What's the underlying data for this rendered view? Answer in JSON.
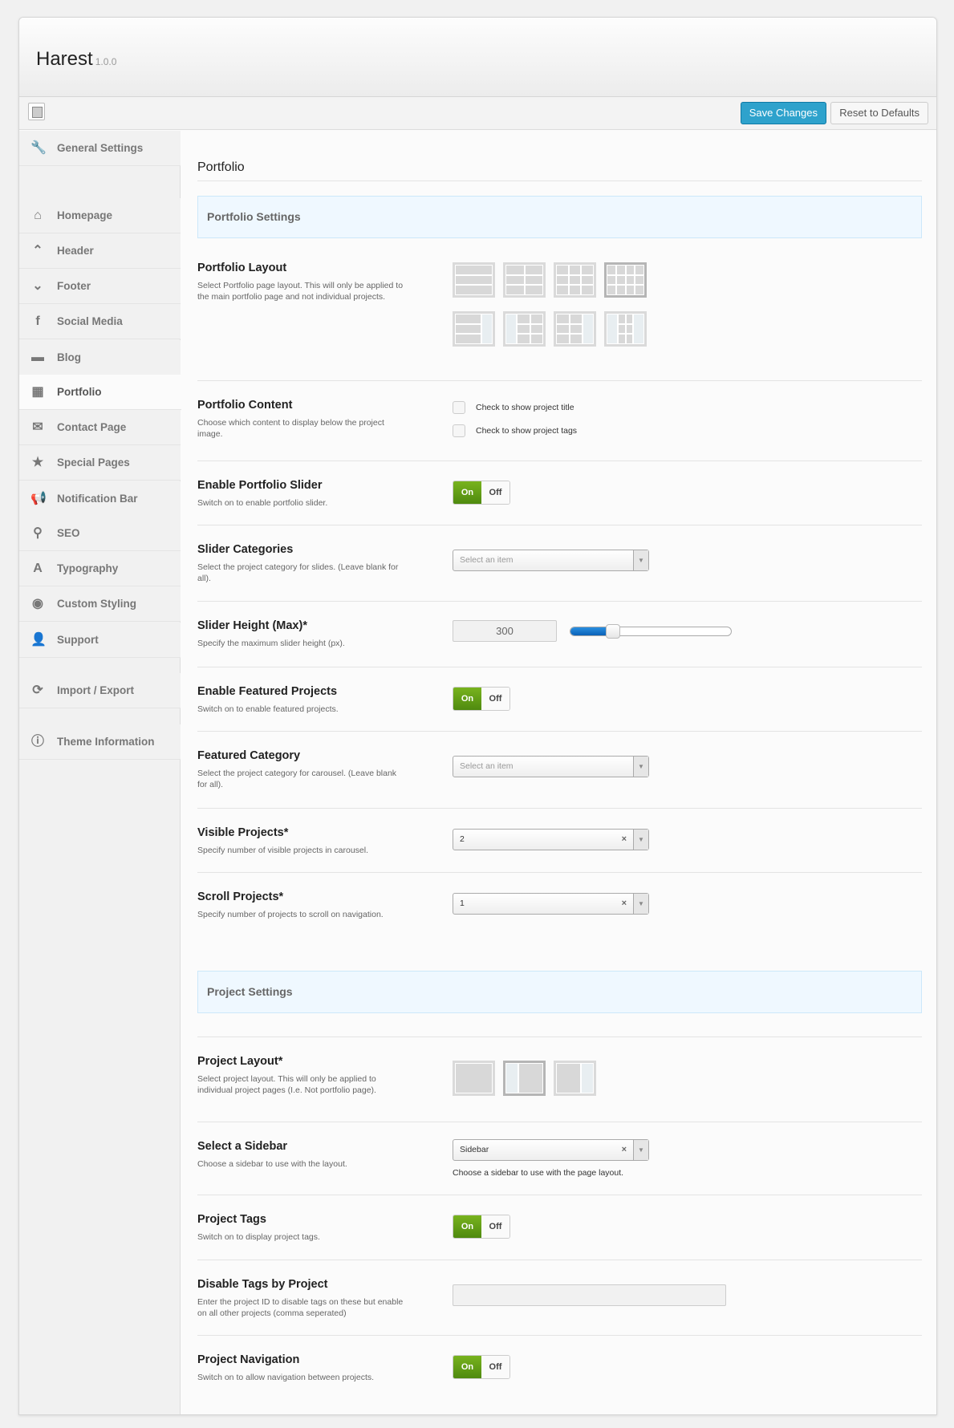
{
  "app": {
    "title": "Harest",
    "version": "1.0.0"
  },
  "toolbar": {
    "save_label": "Save Changes",
    "reset_label": "Reset to Defaults"
  },
  "sidebar": {
    "items": [
      {
        "label": "General Settings",
        "icon": "wrench"
      },
      {
        "label": "Homepage",
        "icon": "home"
      },
      {
        "label": "Header",
        "icon": "chevron-up"
      },
      {
        "label": "Footer",
        "icon": "chevron-down"
      },
      {
        "label": "Social Media",
        "icon": "facebook"
      },
      {
        "label": "Blog",
        "icon": "comment"
      },
      {
        "label": "Portfolio",
        "icon": "grid",
        "active": true
      },
      {
        "label": "Contact Page",
        "icon": "envelope"
      },
      {
        "label": "Special Pages",
        "icon": "star"
      },
      {
        "label": "Notification Bar",
        "icon": "megaphone"
      },
      {
        "label": "SEO",
        "icon": "search"
      },
      {
        "label": "Typography",
        "icon": "font"
      },
      {
        "label": "Custom Styling",
        "icon": "eye"
      },
      {
        "label": "Support",
        "icon": "user"
      },
      {
        "label": "Import / Export",
        "icon": "refresh"
      },
      {
        "label": "Theme Information",
        "icon": "info"
      }
    ]
  },
  "page": {
    "title": "Portfolio"
  },
  "sections": {
    "portfolio": "Portfolio Settings",
    "project": "Project Settings"
  },
  "fields": {
    "portfolio_layout": {
      "title": "Portfolio Layout",
      "desc": "Select Portfolio page layout. This will only be applied to the main portfolio page and not individual projects.",
      "options": [
        "1 column",
        "2 columns",
        "3 columns",
        "4 columns",
        "1 column right sidebar",
        "2 columns left sidebar",
        "2 columns right sidebar",
        "2 columns both sidebars"
      ],
      "selected": 3
    },
    "portfolio_content": {
      "title": "Portfolio Content",
      "desc": "Choose which content to display below the project image.",
      "options": [
        {
          "label": "Check to show project title",
          "checked": false
        },
        {
          "label": "Check to show project tags",
          "checked": false
        }
      ]
    },
    "enable_slider": {
      "title": "Enable Portfolio Slider",
      "desc": "Switch on to enable portfolio slider.",
      "on": "On",
      "off": "Off",
      "value": true
    },
    "slider_categories": {
      "title": "Slider Categories",
      "desc": "Select the project category for slides. (Leave blank for all).",
      "placeholder": "Select an item"
    },
    "slider_height": {
      "title": "Slider Height (Max)*",
      "desc": "Specify the maximum slider height (px).",
      "value": "300",
      "slider_fraction": 0.25
    },
    "enable_featured": {
      "title": "Enable Featured Projects",
      "desc": "Switch on to enable featured projects.",
      "on": "On",
      "off": "Off",
      "value": true
    },
    "featured_category": {
      "title": "Featured Category",
      "desc": "Select the project category for carousel. (Leave blank for all).",
      "placeholder": "Select an item"
    },
    "visible_projects": {
      "title": "Visible Projects*",
      "desc": "Specify number of visible projects in carousel.",
      "value": "2"
    },
    "scroll_projects": {
      "title": "Scroll Projects*",
      "desc": "Specify number of projects to scroll on navigation.",
      "value": "1"
    },
    "project_layout": {
      "title": "Project Layout*",
      "desc": "Select project layout. This will only be applied to individual project pages (I.e. Not portfolio page).",
      "options": [
        "full width",
        "left sidebar",
        "right sidebar"
      ],
      "selected": 1
    },
    "select_sidebar": {
      "title": "Select a Sidebar",
      "desc": "Choose a sidebar to use with the layout.",
      "value": "Sidebar",
      "note": "Choose a sidebar to use with the page layout."
    },
    "project_tags": {
      "title": "Project Tags",
      "desc": "Switch on to display project tags.",
      "on": "On",
      "off": "Off",
      "value": true
    },
    "disable_tags": {
      "title": "Disable Tags by Project",
      "desc": "Enter the project ID to disable tags on these but enable on all other projects (comma seperated)",
      "value": ""
    },
    "project_navigation": {
      "title": "Project Navigation",
      "desc": "Switch on to allow navigation between projects.",
      "on": "On",
      "off": "Off",
      "value": true
    }
  }
}
